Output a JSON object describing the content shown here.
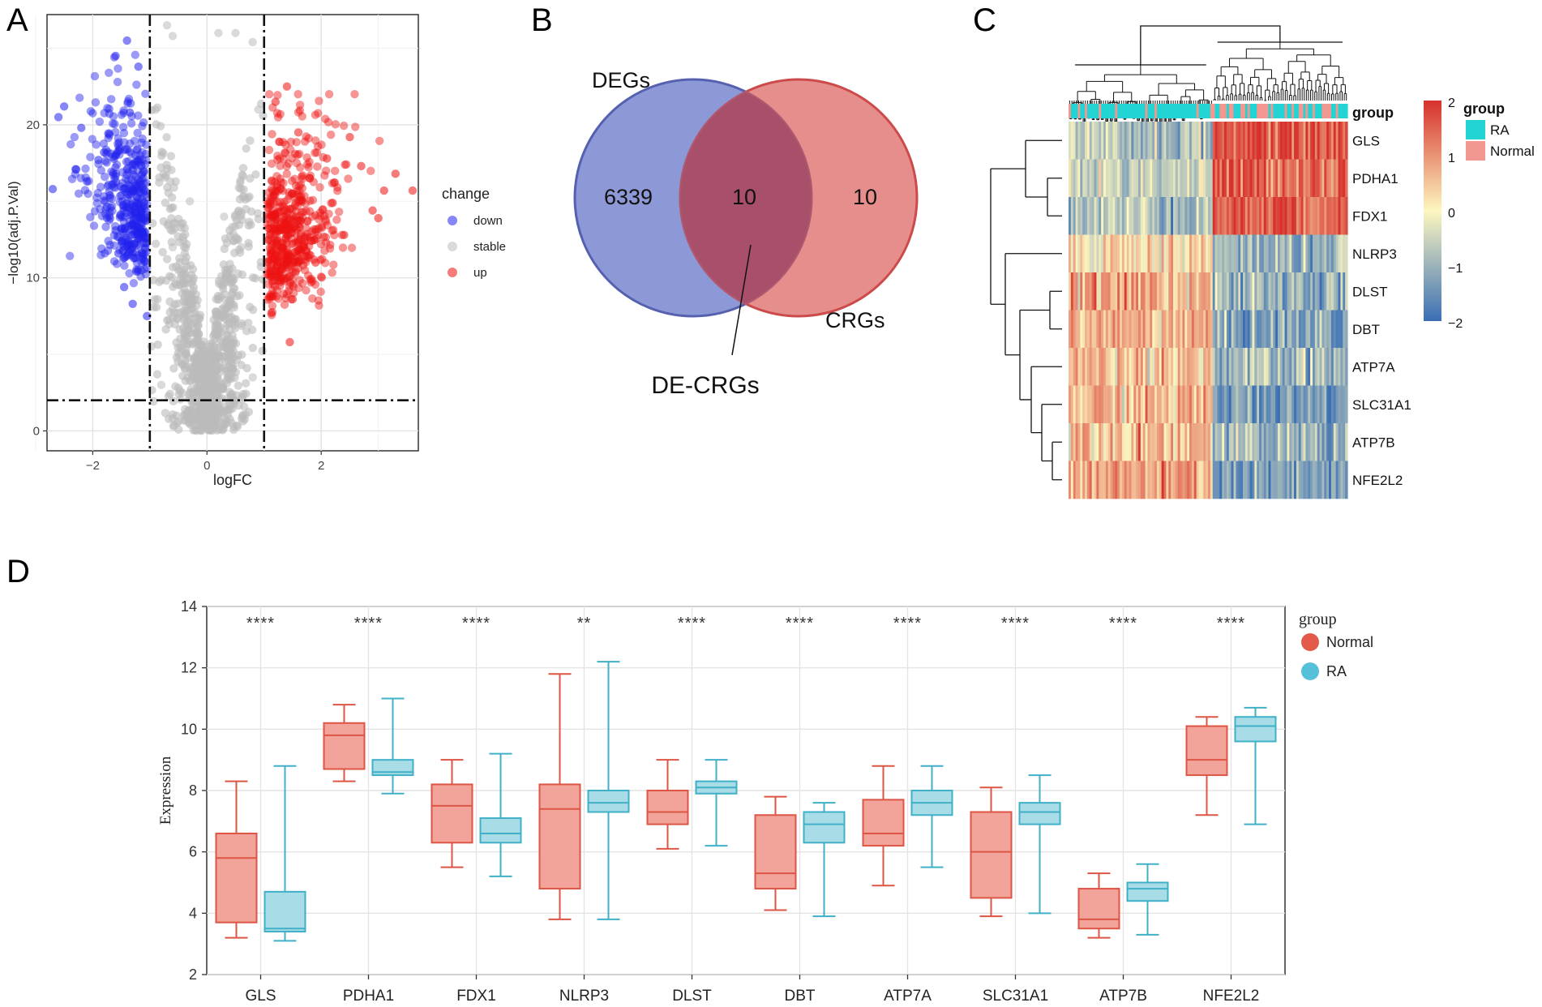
{
  "panel_labels": {
    "a": "A",
    "b": "B",
    "c": "C",
    "d": "D"
  },
  "chart_data": [
    {
      "type": "scatter",
      "panel": "A",
      "title": "",
      "xlabel": "logFC",
      "ylabel": "−log10(adj.P.Val)",
      "xlim": [
        -2.8,
        3.7
      ],
      "ylim": [
        -1.3,
        27.2
      ],
      "x_ticks": [
        -2,
        0,
        2
      ],
      "y_ticks": [
        0,
        10,
        20
      ],
      "thresholds": {
        "logFC": [
          -1,
          1
        ],
        "neglog10p": 2
      },
      "legend": {
        "title": "change",
        "entries": [
          "down",
          "stable",
          "up"
        ],
        "placement": "right"
      },
      "colors": {
        "down": "#2222ee",
        "stable": "#bbbbbb",
        "up": "#ee1111"
      },
      "series": [
        {
          "name": "down",
          "points": [
            [
              -2.6,
              20.5
            ],
            [
              -2.5,
              21.2
            ],
            [
              -2.7,
              15.8
            ],
            [
              -2.2,
              19.8
            ],
            [
              -1.6,
              24.5
            ],
            [
              -1.4,
              25.5
            ],
            [
              -1.2,
              23.8
            ],
            [
              -1.3,
              8.3
            ],
            [
              -1.45,
              9.4
            ],
            [
              -1.05,
              7.5
            ],
            [
              -2.1,
              16.3
            ],
            [
              -1.8,
              18.2
            ],
            [
              -1.55,
              11.6
            ],
            [
              -1.2,
              12.6
            ],
            [
              -1.7,
              15.4
            ],
            [
              -1.9,
              17.7
            ],
            [
              -1.35,
              20.8
            ],
            [
              -1.15,
              14.4
            ],
            [
              -1.6,
              13.1
            ],
            [
              -2.3,
              17.1
            ]
          ]
        },
        {
          "name": "stable",
          "points": [
            [
              -0.7,
              26.5
            ],
            [
              -0.6,
              25.8
            ],
            [
              0.2,
              26
            ],
            [
              0.5,
              26
            ],
            [
              0.8,
              25.4
            ],
            [
              -0.3,
              15
            ],
            [
              0.3,
              14
            ],
            [
              0,
              1
            ],
            [
              0.1,
              3
            ],
            [
              -0.1,
              5
            ],
            [
              0.6,
              12
            ],
            [
              -0.6,
              12
            ],
            [
              -0.9,
              21
            ],
            [
              0.9,
              21
            ],
            [
              -0.8,
              3
            ],
            [
              0.8,
              3.5
            ]
          ]
        },
        {
          "name": "up",
          "points": [
            [
              1.2,
              21.5
            ],
            [
              1.4,
              22.5
            ],
            [
              3.3,
              16.8
            ],
            [
              3.6,
              15.7
            ],
            [
              3.1,
              15.7
            ],
            [
              2.5,
              19.2
            ],
            [
              2.1,
              17.8
            ],
            [
              1.7,
              12.2
            ],
            [
              1.5,
              8.6
            ],
            [
              1.45,
              5.8
            ],
            [
              2.9,
              14.4
            ],
            [
              2.4,
              12.8
            ],
            [
              1.8,
              16.5
            ],
            [
              1.25,
              10.2
            ],
            [
              2.2,
              14.9
            ],
            [
              1.6,
              19.5
            ],
            [
              2.7,
              17.3
            ],
            [
              3.0,
              13.9
            ],
            [
              1.9,
              11.0
            ],
            [
              1.35,
              14.0
            ]
          ]
        }
      ]
    },
    {
      "type": "venn",
      "panel": "B",
      "sets": [
        {
          "name": "DEGs",
          "only": "6339",
          "color": "#6f7fcc",
          "stroke": "#5560b0"
        },
        {
          "name": "CRGs",
          "only": "10",
          "color": "#e07a78",
          "stroke": "#cc4a4a"
        }
      ],
      "intersection": "10",
      "intersection_label": "DE-CRGs",
      "intersection_color": "#a8506a"
    },
    {
      "type": "heatmap",
      "panel": "C",
      "rows": [
        "GLS",
        "PDHA1",
        "FDX1",
        "NLRP3",
        "DLST",
        "DBT",
        "ATP7A",
        "SLC31A1",
        "ATP7B",
        "NFE2L2"
      ],
      "annotation_label": "group",
      "column_groups": [
        "RA",
        "Normal"
      ],
      "row_cluster_profile": [
        [
          -0.8,
          1.7
        ],
        [
          -0.5,
          1.5
        ],
        [
          -0.7,
          1.6
        ],
        [
          0.3,
          -1.0
        ],
        [
          0.8,
          -1.1
        ],
        [
          0.7,
          -1.2
        ],
        [
          0.6,
          -1.0
        ],
        [
          0.6,
          -1.3
        ],
        [
          0.7,
          -1.0
        ],
        [
          0.8,
          -1.4
        ]
      ],
      "color_scale": {
        "min": -2,
        "max": 2,
        "ticks": [
          "2",
          "1",
          "0",
          "−1",
          "−2"
        ],
        "colors": [
          "#3a6fb4",
          "#fdf7c0",
          "#d6312b"
        ]
      },
      "legend": {
        "title": "group",
        "entries": [
          {
            "label": "RA",
            "color": "#22d4d4"
          },
          {
            "label": "Normal",
            "color": "#f29890"
          }
        ]
      }
    },
    {
      "type": "box",
      "panel": "D",
      "title": "",
      "xlabel": "",
      "ylabel": "Expression",
      "ylim": [
        2,
        14
      ],
      "y_ticks": [
        2,
        4,
        6,
        8,
        10,
        12,
        14
      ],
      "categories": [
        "GLS",
        "PDHA1",
        "FDX1",
        "NLRP3",
        "DLST",
        "DBT",
        "ATP7A",
        "SLC31A1",
        "ATP7B",
        "NFE2L2"
      ],
      "significance": [
        "****",
        "****",
        "****",
        "**",
        "****",
        "****",
        "****",
        "****",
        "****",
        "****"
      ],
      "legend": {
        "title": "group",
        "placement": "right"
      },
      "series": [
        {
          "name": "Normal",
          "fill": "#f2a49a",
          "stroke": "#dd5544",
          "boxes": [
            [
              3.2,
              3.7,
              5.8,
              6.6,
              8.3
            ],
            [
              8.3,
              8.7,
              9.8,
              10.2,
              10.8
            ],
            [
              5.5,
              6.3,
              7.5,
              8.2,
              9.0
            ],
            [
              3.8,
              4.8,
              7.4,
              8.2,
              11.8
            ],
            [
              6.1,
              6.9,
              7.3,
              8.0,
              9.0
            ],
            [
              4.1,
              4.8,
              5.3,
              7.2,
              7.8
            ],
            [
              4.9,
              6.2,
              6.6,
              7.7,
              8.8
            ],
            [
              3.9,
              4.5,
              6.0,
              7.3,
              8.1
            ],
            [
              3.2,
              3.5,
              3.8,
              4.8,
              5.3
            ],
            [
              7.2,
              8.5,
              9.0,
              10.1,
              10.4
            ]
          ]
        },
        {
          "name": "RA",
          "fill": "#a8dde8",
          "stroke": "#40b0c8",
          "boxes": [
            [
              3.1,
              3.4,
              3.5,
              4.7,
              8.8
            ],
            [
              7.9,
              8.5,
              8.6,
              9.0,
              11.0
            ],
            [
              5.2,
              6.3,
              6.6,
              7.1,
              9.2
            ],
            [
              3.8,
              7.3,
              7.6,
              8.0,
              12.2
            ],
            [
              6.2,
              7.9,
              8.1,
              8.3,
              9.0
            ],
            [
              3.9,
              6.3,
              6.9,
              7.3,
              7.6
            ],
            [
              5.5,
              7.2,
              7.6,
              8.0,
              8.8
            ],
            [
              4.0,
              6.9,
              7.3,
              7.6,
              8.5
            ],
            [
              3.3,
              4.4,
              4.8,
              5.0,
              5.6
            ],
            [
              6.9,
              9.6,
              10.1,
              10.4,
              10.7
            ]
          ]
        }
      ]
    }
  ]
}
